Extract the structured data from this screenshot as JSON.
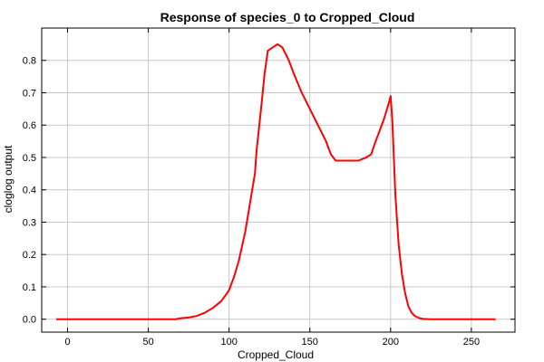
{
  "chart_data": {
    "type": "line",
    "title": "Response of species_0 to Cropped_Cloud",
    "xlabel": "Cropped_Cloud",
    "ylabel": "cloglog output",
    "xlim": [
      -16,
      277
    ],
    "ylim": [
      -0.04,
      0.9
    ],
    "xticks": [
      0,
      50,
      100,
      150,
      200,
      250
    ],
    "yticks": [
      0.0,
      0.1,
      0.2,
      0.3,
      0.4,
      0.5,
      0.6,
      0.7,
      0.8
    ],
    "ytick_labels": [
      "0.0",
      "0.1",
      "0.2",
      "0.3",
      "0.4",
      "0.5",
      "0.6",
      "0.7",
      "0.8"
    ],
    "grid": true,
    "series": [
      {
        "color": "#ff0000",
        "x": [
          -7,
          0,
          20,
          40,
          60,
          67,
          70,
          75,
          80,
          85,
          90,
          95,
          98,
          100,
          103,
          106,
          110,
          113,
          116,
          117,
          120,
          122,
          124,
          127,
          130,
          133,
          137,
          140,
          145,
          150,
          155,
          160,
          163,
          166,
          170,
          175,
          180,
          185,
          188,
          190,
          193,
          196,
          199,
          200,
          201,
          202,
          203,
          205,
          207,
          209,
          211,
          213,
          215,
          218,
          220,
          225,
          235,
          250,
          265
        ],
        "y": [
          0.0,
          0.0,
          0.0,
          0.0,
          0.0,
          0.0,
          0.003,
          0.005,
          0.01,
          0.02,
          0.035,
          0.055,
          0.075,
          0.09,
          0.13,
          0.18,
          0.27,
          0.36,
          0.45,
          0.52,
          0.66,
          0.76,
          0.83,
          0.84,
          0.85,
          0.84,
          0.8,
          0.76,
          0.7,
          0.65,
          0.6,
          0.55,
          0.51,
          0.49,
          0.49,
          0.49,
          0.49,
          0.5,
          0.51,
          0.54,
          0.58,
          0.62,
          0.67,
          0.69,
          0.62,
          0.5,
          0.38,
          0.23,
          0.14,
          0.08,
          0.04,
          0.02,
          0.01,
          0.003,
          0.001,
          0.0,
          0.0,
          0.0,
          0.0
        ]
      }
    ]
  }
}
